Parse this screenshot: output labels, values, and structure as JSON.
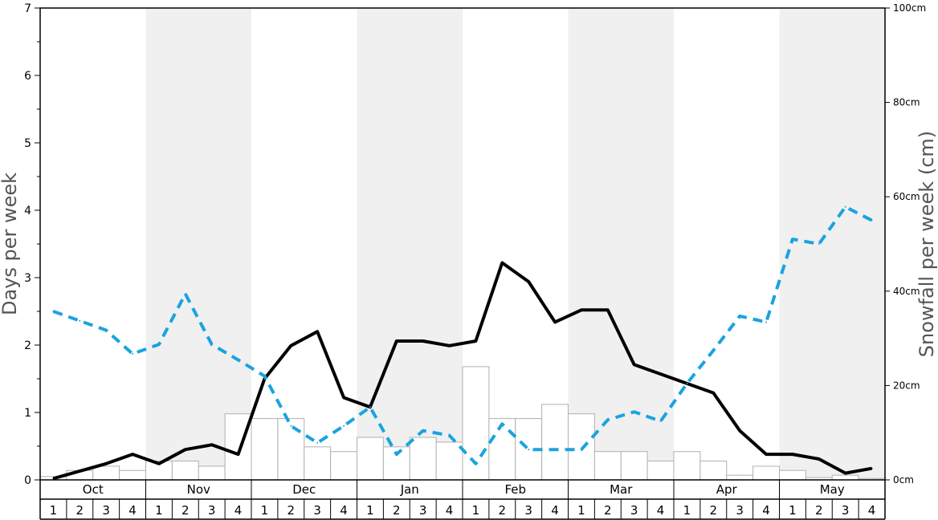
{
  "chart_data": {
    "type": "bar+line",
    "title": "",
    "ylabel_left": "Days per week",
    "ylabel_right": "Snowfall per week (cm)",
    "ylim_left": [
      0,
      7
    ],
    "ylim_right": [
      0,
      100
    ],
    "left_ticks": [
      0,
      1,
      2,
      3,
      4,
      5,
      6,
      7
    ],
    "right_ticks": [
      "0cm",
      "20cm",
      "40cm",
      "60cm",
      "80cm",
      "100cm"
    ],
    "right_tick_values": [
      0,
      20,
      40,
      60,
      80,
      100
    ],
    "months": [
      "Oct",
      "Nov",
      "Dec",
      "Jan",
      "Feb",
      "Mar",
      "Apr",
      "May"
    ],
    "weeks": [
      "1",
      "2",
      "3",
      "4"
    ],
    "series": [
      {
        "kind": "bar",
        "axis": "right",
        "values": [
          0.7,
          2.0,
          2.9,
          2.0,
          4.0,
          4.0,
          2.9,
          14.0,
          13.0,
          13.0,
          7.0,
          6.0,
          9.0,
          7.0,
          9.0,
          8.0,
          24.0,
          13.0,
          13.0,
          16.0,
          14.0,
          6.0,
          6.0,
          4.0,
          6.0,
          4.0,
          1.0,
          2.9,
          2.0,
          0.5,
          1.0,
          0.3
        ]
      },
      {
        "kind": "line",
        "axis": "left",
        "style": "solid",
        "color": "#000000",
        "values": [
          0.02,
          0.13,
          0.24,
          0.38,
          0.24,
          0.45,
          0.52,
          0.38,
          1.5,
          1.99,
          2.2,
          1.22,
          1.08,
          2.06,
          2.06,
          1.99,
          2.06,
          3.22,
          2.94,
          2.34,
          2.52,
          2.52,
          1.71,
          1.57,
          1.43,
          1.29,
          0.73,
          0.38,
          0.38,
          0.31,
          0.1,
          0.17
        ]
      },
      {
        "kind": "line",
        "axis": "left",
        "style": "dashed",
        "color": "#1aa3e0",
        "values": [
          2.5,
          2.36,
          2.22,
          1.87,
          2.01,
          2.76,
          2.01,
          1.78,
          1.54,
          0.8,
          0.55,
          0.8,
          1.08,
          0.38,
          0.73,
          0.66,
          0.24,
          0.83,
          0.45,
          0.45,
          0.45,
          0.89,
          1.01,
          0.87,
          1.43,
          1.92,
          2.43,
          2.34,
          3.57,
          3.5,
          4.05,
          3.85
        ]
      }
    ],
    "grid": false,
    "legend": "none"
  }
}
